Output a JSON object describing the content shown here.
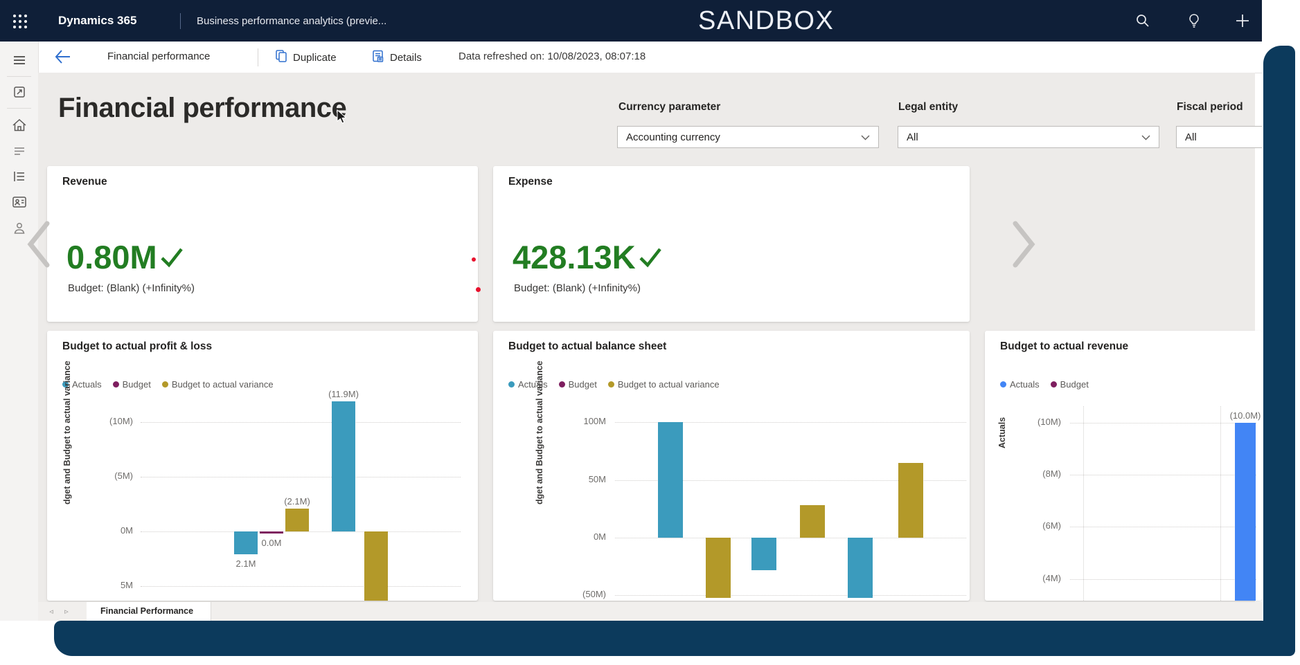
{
  "header": {
    "brand": "Dynamics 365",
    "app_name": "Business performance analytics (previe...",
    "environment": "SANDBOX",
    "icons": [
      "app-launcher-icon",
      "search-icon",
      "lightbulb-icon",
      "add-icon"
    ]
  },
  "command_bar": {
    "page": "Financial performance",
    "duplicate": "Duplicate",
    "details": "Details",
    "refreshed": "Data refreshed on: 10/08/2023, 08:07:18"
  },
  "sidebar": {
    "icons": [
      "menu-icon",
      "tasks-icon",
      "home-icon",
      "feed-icon",
      "list-icon",
      "contact-card-icon",
      "person-icon"
    ]
  },
  "main": {
    "title": "Financial performance",
    "filters": [
      {
        "label": "Currency parameter",
        "value": "Accounting currency"
      },
      {
        "label": "Legal entity",
        "value": "All"
      },
      {
        "label": "Fiscal period",
        "value": "All"
      }
    ],
    "kpis": [
      {
        "title": "Revenue",
        "value": "0.80M",
        "status_icon": "green-check",
        "subtext": "Budget: (Blank) (+Infinity%)"
      },
      {
        "title": "Expense",
        "value": "428.13K",
        "status_icon": "green-check",
        "subtext": "Budget: (Blank) (+Infinity%)"
      }
    ]
  },
  "footer": {
    "active_tab": "Financial Performance"
  },
  "colors": {
    "kpi_green": "#227d22",
    "teal": "#3b9bbd",
    "magenta": "#7e1e5f",
    "gold": "#b39929",
    "bright_blue": "#4285f5",
    "frame_navy": "#0c3a5c",
    "header_navy": "#0f1f38"
  },
  "chart_data": [
    {
      "type": "bar",
      "title": "Budget to actual profit & loss",
      "y_axis_title": "dget and Budget to actual variance",
      "unit": "M",
      "inverted_axis": true,
      "grid": "dotted",
      "legend_position": "top",
      "legend": [
        {
          "name": "Actuals",
          "color": "#3b9bbd"
        },
        {
          "name": "Budget",
          "color": "#7e1e5f"
        },
        {
          "name": "Budget to actual variance",
          "color": "#b39929"
        }
      ],
      "y_ticks": [
        {
          "label": "(10M)",
          "value": -10
        },
        {
          "label": "(5M)",
          "value": -5
        },
        {
          "label": "0M",
          "value": 0
        },
        {
          "label": "5M",
          "value": 5
        }
      ],
      "bars": [
        {
          "series": "Actuals",
          "value": 2.1,
          "label": "2.1M"
        },
        {
          "series": "Budget",
          "value": 0.0,
          "label": "0.0M"
        },
        {
          "series": "Budget to actual variance",
          "value": -2.1,
          "label": "(2.1M)"
        },
        {
          "series": "Actuals",
          "value": -11.9,
          "label": "(11.9M)"
        },
        {
          "series": "Budget to actual variance",
          "value": 6.8,
          "label": ""
        }
      ]
    },
    {
      "type": "bar",
      "title": "Budget to actual balance sheet",
      "y_axis_title": "dget and Budget to actual variance",
      "unit": "M",
      "inverted_axis": false,
      "grid": "dotted",
      "legend_position": "top",
      "legend": [
        {
          "name": "Actuals",
          "color": "#3b9bbd"
        },
        {
          "name": "Budget",
          "color": "#7e1e5f"
        },
        {
          "name": "Budget to actual variance",
          "color": "#b39929"
        }
      ],
      "y_ticks": [
        {
          "label": "100M",
          "value": 100
        },
        {
          "label": "50M",
          "value": 50
        },
        {
          "label": "0M",
          "value": 0
        },
        {
          "label": "(50M)",
          "value": -50
        }
      ],
      "bars": [
        {
          "series": "Actuals",
          "value": 100,
          "label": ""
        },
        {
          "series": "Budget to actual variance",
          "value": -52,
          "label": ""
        },
        {
          "series": "Actuals",
          "value": -28,
          "label": ""
        },
        {
          "series": "Budget to actual variance",
          "value": 28,
          "label": ""
        },
        {
          "series": "Actuals",
          "value": -52,
          "label": ""
        },
        {
          "series": "Budget to actual variance",
          "value": 65,
          "label": ""
        }
      ]
    },
    {
      "type": "bar",
      "title": "Budget to actual revenue",
      "y_axis_title": "Actuals",
      "unit": "M",
      "inverted_axis": true,
      "grid": "dotted",
      "legend_position": "top",
      "legend": [
        {
          "name": "Actuals",
          "color": "#4285f5"
        },
        {
          "name": "Budget",
          "color": "#7e1e5f"
        }
      ],
      "y_ticks": [
        {
          "label": "(10M)",
          "value": -10
        },
        {
          "label": "(8M)",
          "value": -8
        },
        {
          "label": "(6M)",
          "value": -6
        },
        {
          "label": "(4M)",
          "value": -4
        }
      ],
      "bars": [
        {
          "series": "Actuals",
          "value": -10.0,
          "label": "(10.0M)"
        }
      ]
    }
  ]
}
